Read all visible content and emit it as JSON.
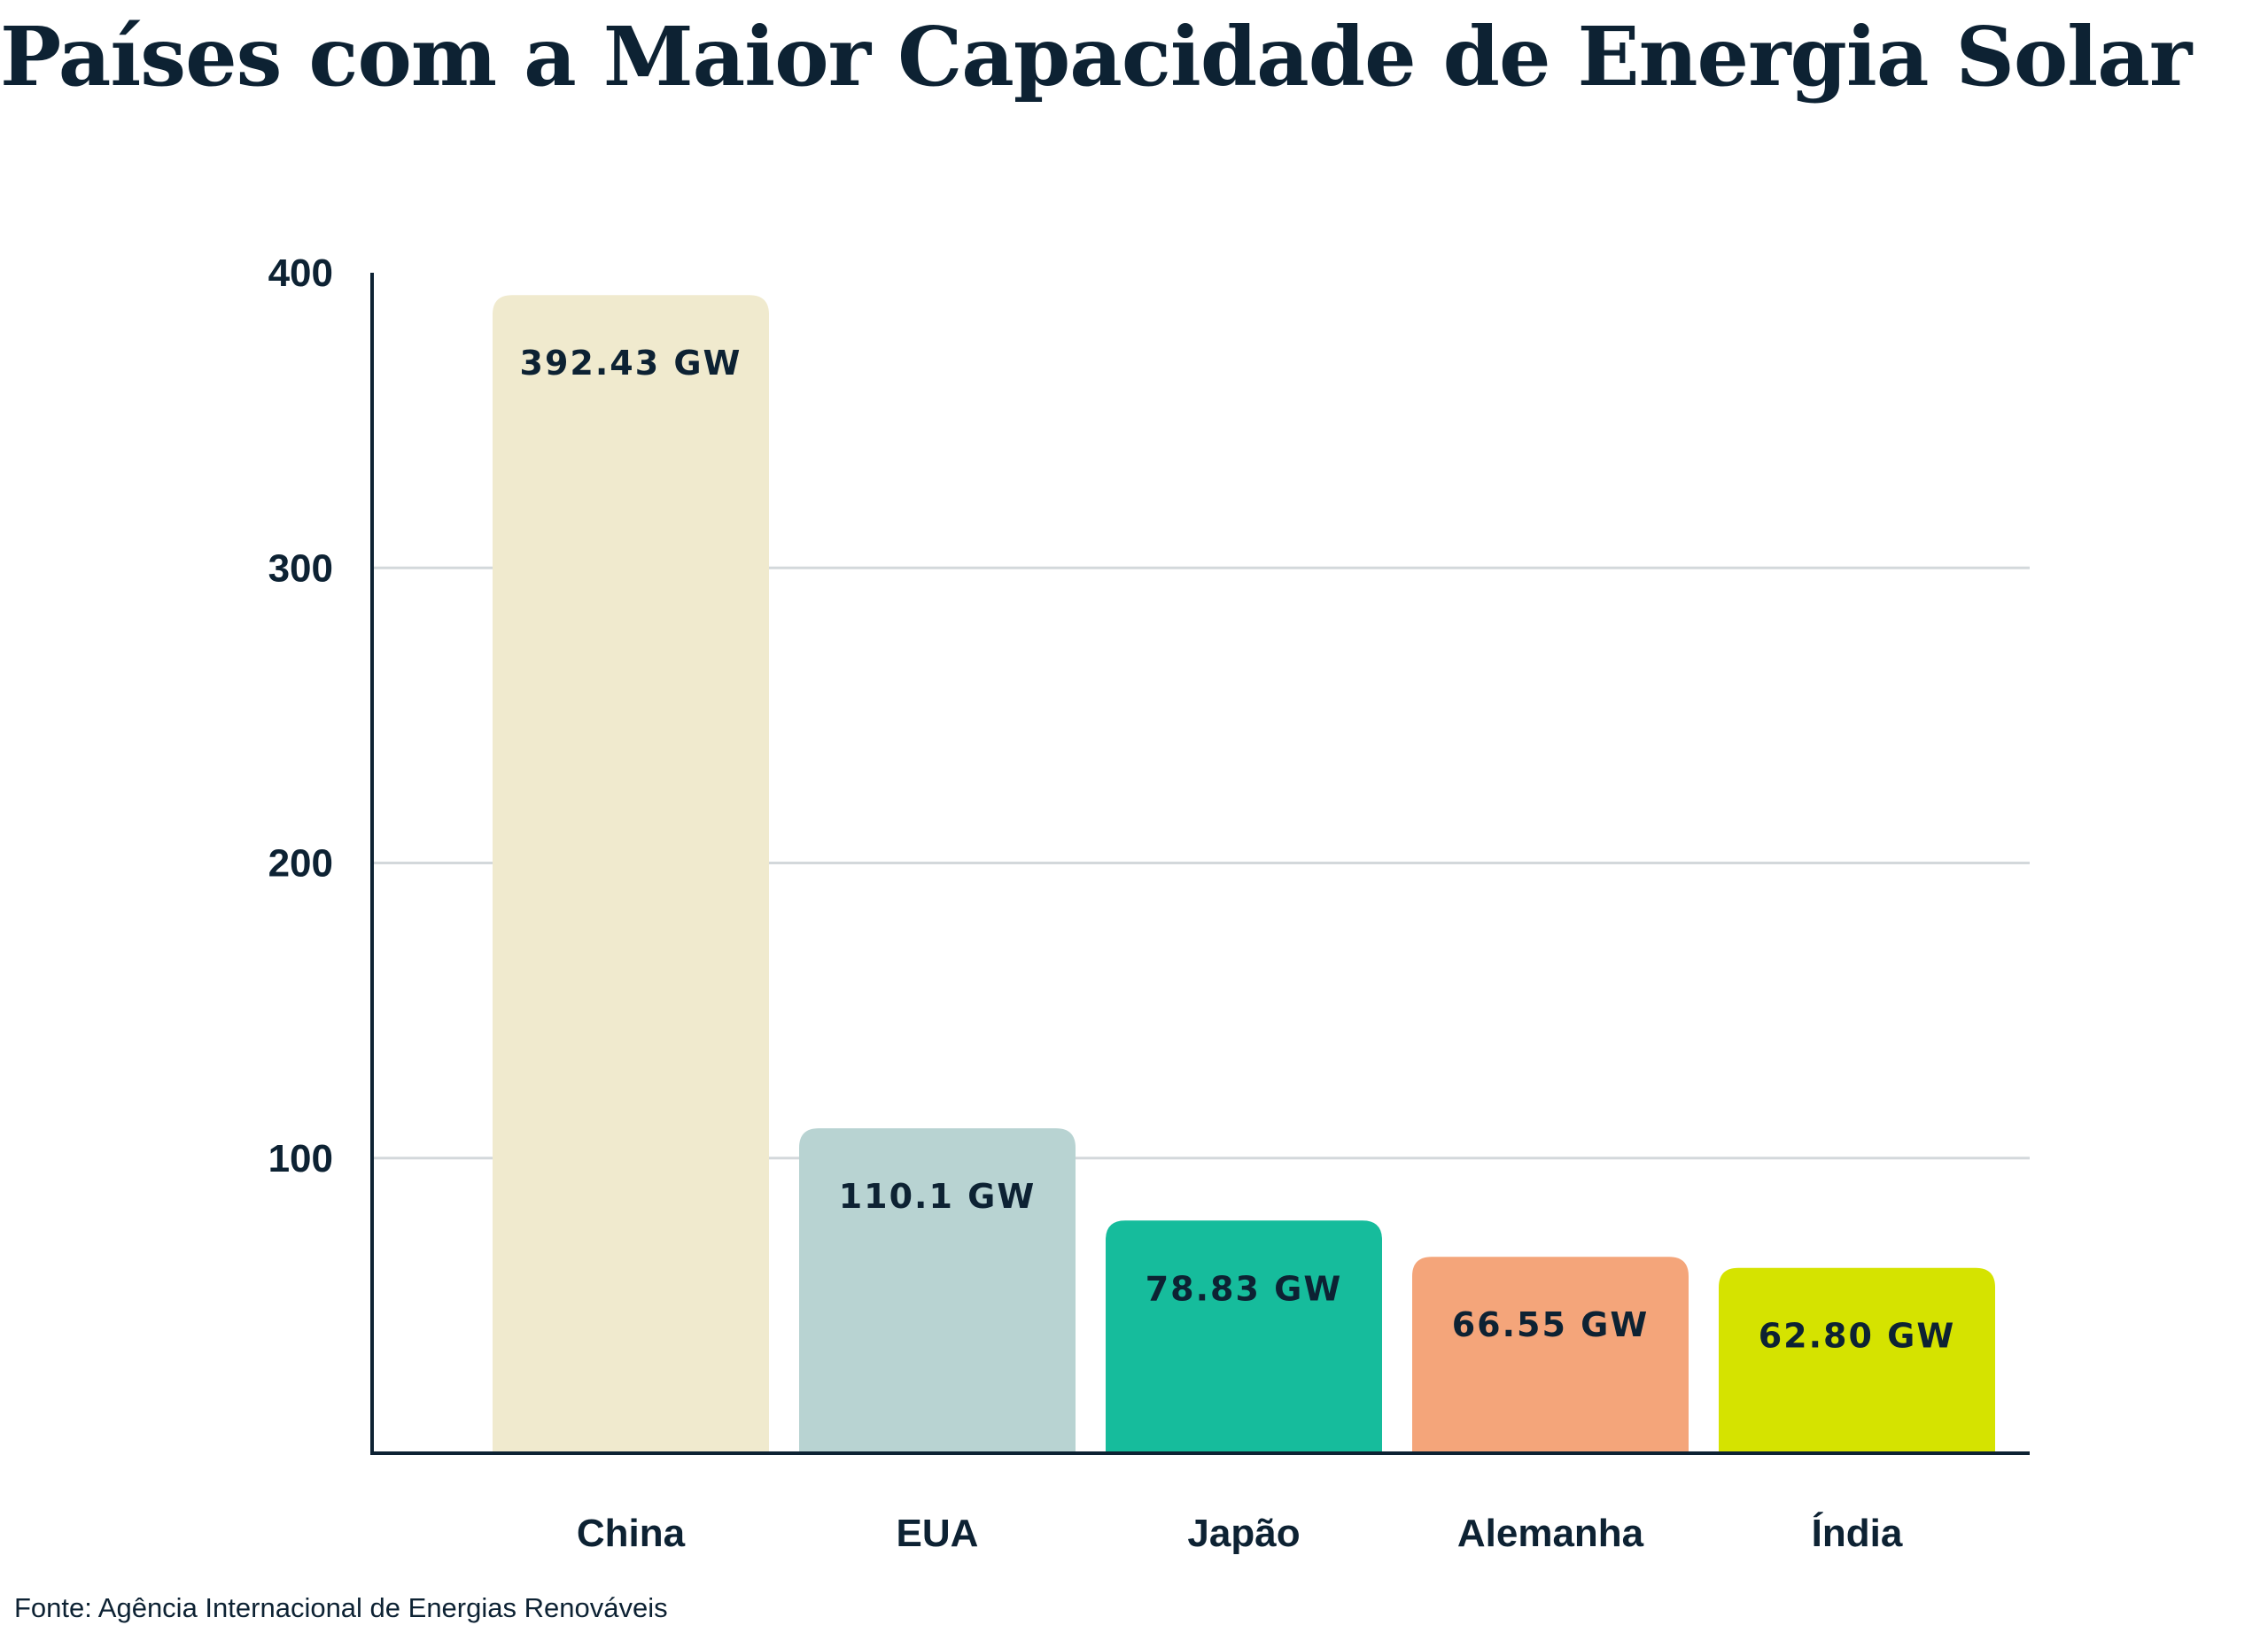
{
  "chart_data": {
    "type": "bar",
    "title": "Países com a Maior Capacidade de Energia Solar",
    "source": "Fonte: Agência Internacional de Energias Renováveis",
    "categories": [
      "China",
      "EUA",
      "Japão",
      "Alemanha",
      "Índia"
    ],
    "values": [
      392.43,
      110.1,
      78.83,
      66.55,
      62.8
    ],
    "data_labels": [
      "392.43 GW",
      "110.1 GW",
      "78.83 GW",
      "66.55 GW",
      "62.80 GW"
    ],
    "colors": [
      "#f0eace",
      "#b8d3d2",
      "#16bc9c",
      "#f4a57a",
      "#d5e300"
    ],
    "yticks": [
      100,
      200,
      300,
      400
    ],
    "ylim": [
      0,
      400
    ],
    "grid": true,
    "xlabel": "",
    "ylabel": ""
  }
}
